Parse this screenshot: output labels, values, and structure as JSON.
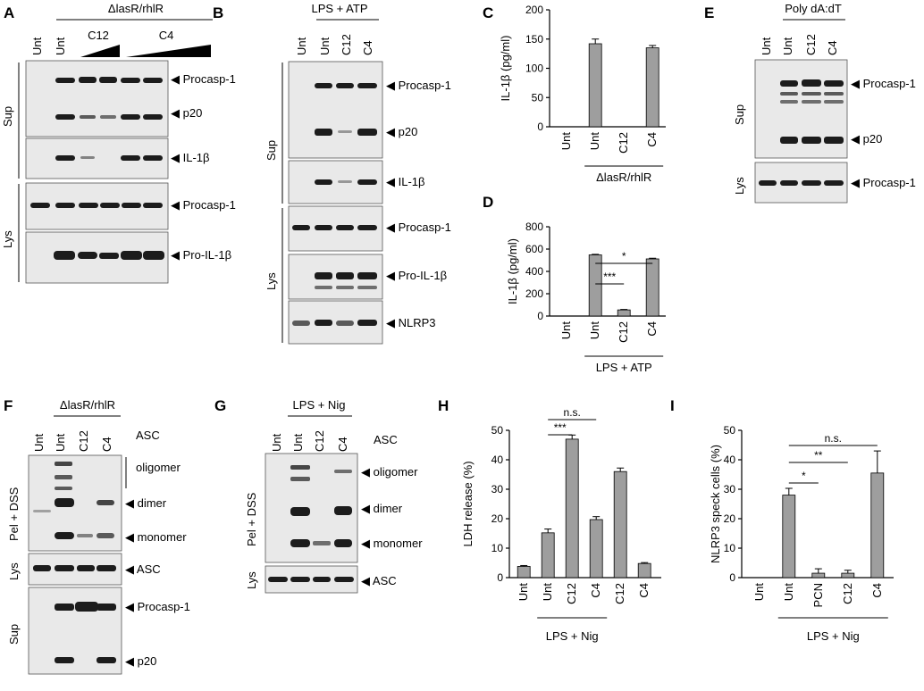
{
  "panel_letters": [
    "A",
    "B",
    "C",
    "D",
    "E",
    "F",
    "G",
    "H",
    "I"
  ],
  "common": {
    "unt": "Unt",
    "c12": "C12",
    "c4": "C4",
    "pcn": "PCN",
    "sup": "Sup",
    "lys": "Lys",
    "pel_dss": "Pel + DSS"
  },
  "headers": {
    "delta": "ΔlasR/rhlR",
    "lps_atp": "LPS + ATP",
    "poly": "Poly dA:dT",
    "lps_nig": "LPS + Nig",
    "asc": "ASC",
    "asc_oligomer_a": "ASC",
    "asc_oligomer_b": "oligomer"
  },
  "blot_labels": {
    "procasp": "Procasp-1",
    "p20": "p20",
    "il1b": "IL-1β",
    "proil1b": "Pro-IL-1β",
    "nlrp3": "NLRP3",
    "oligomer": "oligomer",
    "dimer": "dimer",
    "monomer": "monomer",
    "asc": "ASC"
  },
  "colors": {
    "bar_fill": "#9e9e9e",
    "band": "#1c1c1c",
    "membrane": "#e9e9e9"
  },
  "chart_data": [
    {
      "panel": "C",
      "type": "bar",
      "categories": [
        "Unt",
        "Unt",
        "C12",
        "C4"
      ],
      "values": [
        0,
        142,
        0,
        135
      ],
      "errors": [
        0,
        8,
        0,
        4
      ],
      "ylabel": "IL-1β (pg/ml)",
      "ylim": [
        0,
        200
      ],
      "yticks": [
        0,
        50,
        100,
        150,
        200
      ],
      "group_label": "ΔlasR/rhlR",
      "grid": false
    },
    {
      "panel": "D",
      "type": "bar",
      "categories": [
        "Unt",
        "Unt",
        "C12",
        "C4"
      ],
      "values": [
        0,
        548,
        55,
        512
      ],
      "errors": [
        0,
        5,
        4,
        6
      ],
      "ylabel": "IL-1β (pg/ml)",
      "ylim": [
        0,
        800
      ],
      "yticks": [
        0,
        200,
        400,
        600,
        800
      ],
      "group_label": "LPS + ATP",
      "significance": [
        "*",
        "***"
      ],
      "grid": false
    },
    {
      "panel": "H",
      "type": "bar",
      "categories": [
        "Unt",
        "Unt",
        "C12",
        "C4",
        "C12",
        "C4"
      ],
      "values": [
        3.8,
        15.2,
        47,
        19.7,
        36,
        4.8
      ],
      "errors": [
        0.3,
        1.3,
        1.4,
        1.0,
        1.2,
        0.3
      ],
      "ylabel": "LDH release (%)",
      "ylim": [
        0,
        50
      ],
      "yticks": [
        0,
        10,
        20,
        30,
        40,
        50
      ],
      "group_label": "LPS + Nig",
      "significance": [
        "n.s.",
        "***"
      ],
      "grid": false
    },
    {
      "panel": "I",
      "type": "bar",
      "categories": [
        "Unt",
        "Unt",
        "PCN",
        "C12",
        "C4"
      ],
      "values": [
        0,
        28,
        1.5,
        1.5,
        35.5
      ],
      "errors": [
        0,
        2.3,
        1.5,
        1.0,
        7.5
      ],
      "ylabel": "NLRP3 speck cells (%)",
      "ylim": [
        0,
        50
      ],
      "yticks": [
        0,
        10,
        20,
        30,
        40,
        50
      ],
      "group_label": "LPS + Nig",
      "significance": [
        "n.s.",
        "**",
        "*"
      ],
      "grid": false
    }
  ]
}
